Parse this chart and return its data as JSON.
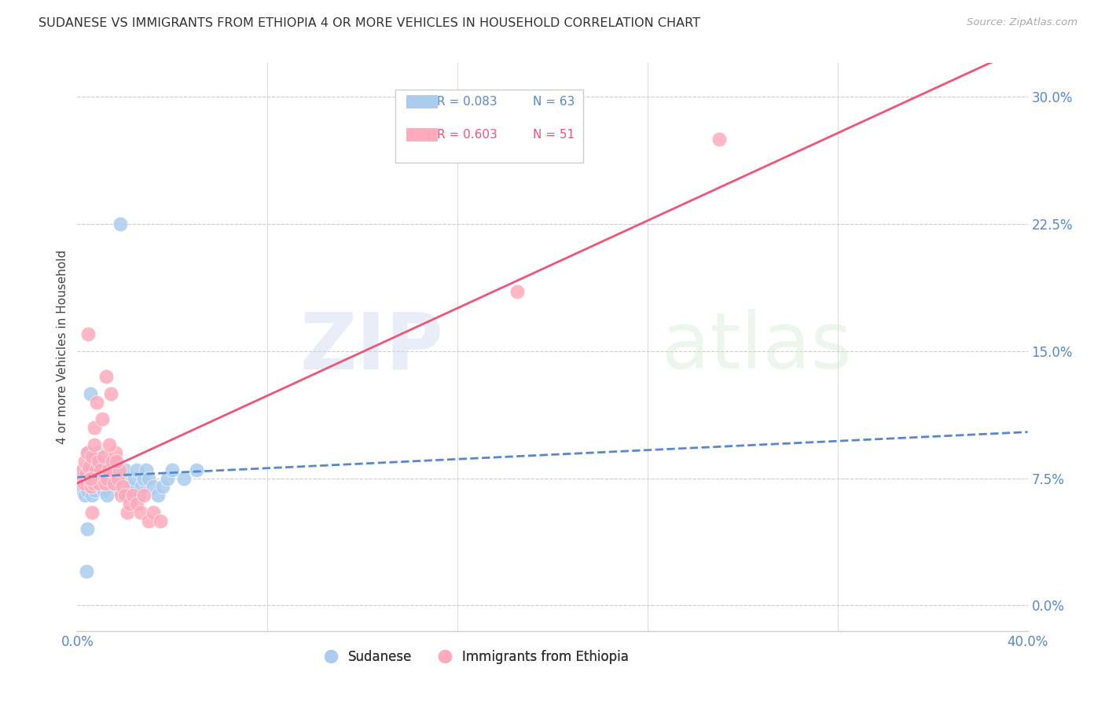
{
  "title": "SUDANESE VS IMMIGRANTS FROM ETHIOPIA 4 OR MORE VEHICLES IN HOUSEHOLD CORRELATION CHART",
  "source": "Source: ZipAtlas.com",
  "ylabel": "4 or more Vehicles in Household",
  "ytick_labels": [
    "0.0%",
    "7.5%",
    "15.0%",
    "22.5%",
    "30.0%"
  ],
  "ytick_values": [
    0.0,
    7.5,
    15.0,
    22.5,
    30.0
  ],
  "xlim": [
    0.0,
    40.0
  ],
  "ylim": [
    -1.5,
    32.0
  ],
  "blue_color": "#aaccee",
  "pink_color": "#ffaabb",
  "blue_line_color": "#5588cc",
  "pink_line_color": "#ee5577",
  "watermark_zip": "ZIP",
  "watermark_atlas": "atlas",
  "blue_R": 0.083,
  "blue_N": 63,
  "pink_R": 0.603,
  "pink_N": 51,
  "blue_scatter_x": [
    0.18,
    0.22,
    0.25,
    0.28,
    0.3,
    0.32,
    0.35,
    0.38,
    0.4,
    0.42,
    0.45,
    0.48,
    0.5,
    0.52,
    0.55,
    0.58,
    0.6,
    0.62,
    0.65,
    0.68,
    0.7,
    0.72,
    0.75,
    0.78,
    0.8,
    0.85,
    0.9,
    0.95,
    1.0,
    1.05,
    1.1,
    1.15,
    1.2,
    1.25,
    1.3,
    1.4,
    1.5,
    1.6,
    1.7,
    1.8,
    1.9,
    2.0,
    2.1,
    2.2,
    2.3,
    2.4,
    2.5,
    2.6,
    2.7,
    2.8,
    2.9,
    3.0,
    3.2,
    3.4,
    3.6,
    3.8,
    4.0,
    4.5,
    5.0,
    0.55,
    0.42,
    0.38,
    1.8
  ],
  "blue_scatter_y": [
    7.2,
    6.8,
    7.0,
    7.5,
    8.0,
    6.5,
    7.8,
    8.2,
    7.0,
    6.8,
    9.0,
    7.5,
    8.5,
    7.2,
    8.8,
    7.0,
    6.5,
    8.0,
    7.5,
    7.0,
    8.5,
    6.8,
    7.2,
    8.0,
    7.5,
    9.0,
    8.0,
    7.0,
    8.5,
    7.5,
    6.8,
    7.2,
    8.0,
    6.5,
    8.5,
    7.8,
    7.2,
    8.0,
    7.5,
    6.8,
    7.5,
    8.0,
    6.5,
    7.0,
    6.8,
    7.5,
    8.0,
    6.5,
    7.0,
    7.5,
    8.0,
    7.5,
    7.0,
    6.5,
    7.0,
    7.5,
    8.0,
    7.5,
    8.0,
    12.5,
    4.5,
    2.0,
    22.5
  ],
  "pink_scatter_x": [
    0.18,
    0.22,
    0.28,
    0.32,
    0.38,
    0.42,
    0.48,
    0.52,
    0.58,
    0.62,
    0.68,
    0.72,
    0.78,
    0.82,
    0.88,
    0.92,
    0.98,
    1.05,
    1.12,
    1.18,
    1.25,
    1.32,
    1.4,
    1.48,
    1.55,
    1.62,
    1.7,
    1.78,
    1.85,
    1.92,
    2.0,
    2.1,
    2.2,
    2.35,
    2.5,
    2.65,
    2.8,
    3.0,
    3.2,
    3.5,
    1.2,
    0.45,
    0.55,
    0.62,
    0.72,
    0.82,
    1.05,
    1.35,
    1.65,
    27.0,
    18.5
  ],
  "pink_scatter_y": [
    7.5,
    8.0,
    7.2,
    8.5,
    7.8,
    9.0,
    8.2,
    7.5,
    7.0,
    8.8,
    7.2,
    9.5,
    8.0,
    7.5,
    8.5,
    7.2,
    8.0,
    7.5,
    8.8,
    7.2,
    7.5,
    8.0,
    12.5,
    8.5,
    7.2,
    9.0,
    7.5,
    8.0,
    6.5,
    7.0,
    6.5,
    5.5,
    6.0,
    6.5,
    6.0,
    5.5,
    6.5,
    5.0,
    5.5,
    5.0,
    13.5,
    16.0,
    7.5,
    5.5,
    10.5,
    12.0,
    11.0,
    9.5,
    8.5,
    27.5,
    18.5
  ]
}
